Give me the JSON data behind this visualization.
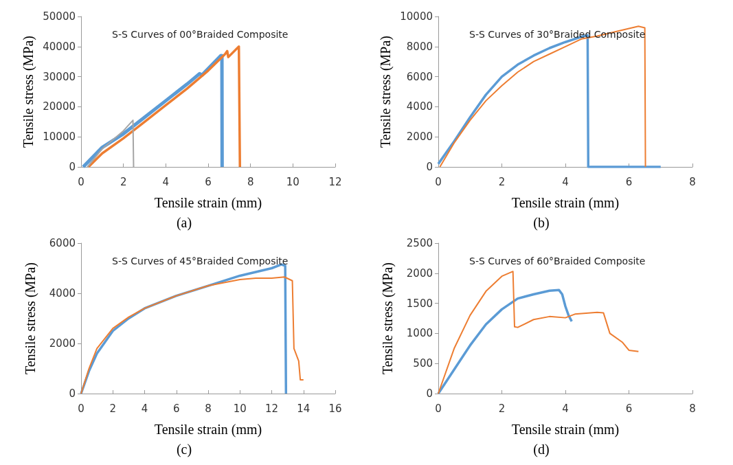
{
  "chart_data": [
    {
      "type": "line",
      "title": "S-S Curves of 00°Braided Composite",
      "xlabel": "Tensile strain (mm)",
      "ylabel": "Tensile stress (MPa)",
      "annotations": [
        "(a)"
      ],
      "xlim": [
        0,
        12
      ],
      "xticks": [
        0,
        2,
        4,
        6,
        8,
        10,
        12
      ],
      "ylim": [
        0,
        50000
      ],
      "yticks": [
        0,
        10000,
        20000,
        30000,
        40000,
        50000
      ],
      "series": [
        {
          "color": "#5b9bd5",
          "x": [
            0.1,
            1,
            2,
            3,
            4,
            5,
            5.6,
            5.7,
            6.6,
            6.65,
            6.66
          ],
          "values": [
            0,
            6500,
            11000,
            16500,
            22000,
            27500,
            31000,
            30500,
            37000,
            37000,
            0
          ]
        },
        {
          "color": "#ed7d31",
          "x": [
            0.35,
            1,
            2,
            3,
            4,
            5,
            6,
            6.8,
            6.9,
            6.95,
            7.45,
            7.5
          ],
          "values": [
            0,
            4500,
            9500,
            15000,
            20500,
            26000,
            32000,
            37500,
            38500,
            36500,
            40000,
            0
          ]
        },
        {
          "color": "#a5a5a5",
          "x": [
            0.3,
            1,
            2,
            2.45,
            2.48
          ],
          "values": [
            0,
            6000,
            12000,
            15500,
            0
          ]
        }
      ]
    },
    {
      "type": "line",
      "title": "S-S Curves of 30°Braided Composite",
      "xlabel": "Tensile strain (mm)",
      "ylabel": "Tensile stress (MPa)",
      "annotations": [
        "(b)"
      ],
      "xlim": [
        0,
        8
      ],
      "xticks": [
        0,
        2,
        4,
        6,
        8
      ],
      "ylim": [
        0,
        10000
      ],
      "yticks": [
        0,
        2000,
        4000,
        6000,
        8000,
        10000
      ],
      "series": [
        {
          "color": "#5b9bd5",
          "x": [
            0,
            0.5,
            1,
            1.5,
            2,
            2.5,
            3,
            3.5,
            4,
            4.5,
            4.7,
            4.72,
            7
          ],
          "values": [
            200,
            1700,
            3300,
            4800,
            6000,
            6800,
            7400,
            7900,
            8300,
            8650,
            8750,
            0,
            0
          ]
        },
        {
          "color": "#ed7d31",
          "x": [
            0.05,
            0.5,
            1,
            1.5,
            2,
            2.5,
            3,
            3.5,
            4,
            4.5,
            5,
            5.5,
            6,
            6.3,
            6.5,
            6.52
          ],
          "values": [
            0,
            1600,
            3100,
            4400,
            5400,
            6300,
            7000,
            7500,
            8000,
            8500,
            8700,
            8950,
            9200,
            9350,
            9250,
            0
          ]
        }
      ]
    },
    {
      "type": "line",
      "title": "S-S Curves of 45°Braided Composite",
      "xlabel": "Tensile strain (mm)",
      "ylabel": "Tensile stress (MPa)",
      "annotations": [
        "(c)"
      ],
      "xlim": [
        0,
        16
      ],
      "xticks": [
        0,
        2,
        4,
        6,
        8,
        10,
        12,
        14,
        16
      ],
      "ylim": [
        0,
        6000
      ],
      "yticks": [
        0,
        2000,
        4000,
        6000
      ],
      "series": [
        {
          "color": "#5b9bd5",
          "x": [
            0,
            0.5,
            1,
            2,
            3,
            4,
            6,
            8,
            10,
            12,
            12.6,
            12.85,
            12.9
          ],
          "values": [
            0,
            900,
            1600,
            2500,
            3000,
            3400,
            3900,
            4300,
            4700,
            5000,
            5150,
            5100,
            0
          ]
        },
        {
          "color": "#ed7d31",
          "x": [
            0,
            0.5,
            1,
            2,
            3,
            4,
            6,
            8,
            10,
            11,
            12,
            12.8,
            13.3,
            13.4,
            13.7,
            13.8,
            14
          ],
          "values": [
            0,
            1000,
            1800,
            2600,
            3050,
            3400,
            3900,
            4300,
            4550,
            4600,
            4600,
            4650,
            4500,
            1800,
            1300,
            550,
            550
          ]
        }
      ]
    },
    {
      "type": "line",
      "title": "S-S Curves of 60°Braided Composite",
      "xlabel": "Tensile strain (mm)",
      "ylabel": "Tensile stress (MPa)",
      "annotations": [
        "(d)"
      ],
      "xlim": [
        0,
        8
      ],
      "xticks": [
        0,
        2,
        4,
        6,
        8
      ],
      "ylim": [
        0,
        2500
      ],
      "yticks": [
        0,
        500,
        1000,
        1500,
        2000,
        2500
      ],
      "series": [
        {
          "color": "#5b9bd5",
          "x": [
            0,
            0.5,
            1,
            1.5,
            2,
            2.5,
            3,
            3.5,
            3.8,
            3.9,
            4,
            4.1,
            4.2
          ],
          "values": [
            0,
            400,
            800,
            1150,
            1400,
            1580,
            1650,
            1710,
            1720,
            1650,
            1450,
            1300,
            1200
          ]
        },
        {
          "color": "#ed7d31",
          "x": [
            0,
            0.5,
            1,
            1.5,
            2,
            2.35,
            2.4,
            2.5,
            3,
            3.5,
            4,
            4.3,
            5,
            5.2,
            5.4,
            5.8,
            6,
            6.3
          ],
          "values": [
            0,
            750,
            1300,
            1700,
            1950,
            2030,
            1110,
            1100,
            1230,
            1280,
            1260,
            1320,
            1350,
            1340,
            1000,
            850,
            720,
            700
          ]
        }
      ]
    }
  ]
}
